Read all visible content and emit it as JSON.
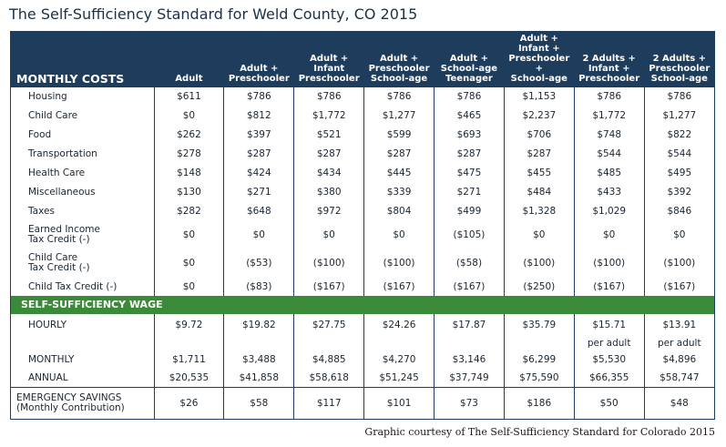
{
  "title": "The Self-Sufficiency Standard for Weld County, CO 2015",
  "credit": "Graphic courtesy of The Self-Sufficiency Standard for Colorado 2015",
  "header": {
    "label": "MONTHLY COSTS",
    "columns": [
      [
        "Adult"
      ],
      [
        "Adult +",
        "Preschooler"
      ],
      [
        "Adult +",
        "Infant",
        "Preschooler"
      ],
      [
        "Adult +",
        "Preschooler",
        "School-age"
      ],
      [
        "Adult +",
        "School-age",
        "Teenager"
      ],
      [
        "Adult +",
        "Infant +",
        "Preschooler +",
        "School-age"
      ],
      [
        "2 Adults +",
        "Infant +",
        "Preschooler"
      ],
      [
        "2 Adults +",
        "Preschooler",
        "School-age"
      ]
    ]
  },
  "costs": [
    {
      "label": [
        "Housing"
      ],
      "values": [
        "$611",
        "$786",
        "$786",
        "$786",
        "$786",
        "$1,153",
        "$786",
        "$786"
      ]
    },
    {
      "label": [
        "Child Care"
      ],
      "values": [
        "$0",
        "$812",
        "$1,772",
        "$1,277",
        "$465",
        "$2,237",
        "$1,772",
        "$1,277"
      ]
    },
    {
      "label": [
        "Food"
      ],
      "values": [
        "$262",
        "$397",
        "$521",
        "$599",
        "$693",
        "$706",
        "$748",
        "$822"
      ]
    },
    {
      "label": [
        "Transportation"
      ],
      "values": [
        "$278",
        "$287",
        "$287",
        "$287",
        "$287",
        "$287",
        "$544",
        "$544"
      ]
    },
    {
      "label": [
        "Health Care"
      ],
      "values": [
        "$148",
        "$424",
        "$434",
        "$445",
        "$475",
        "$455",
        "$485",
        "$495"
      ]
    },
    {
      "label": [
        "Miscellaneous"
      ],
      "values": [
        "$130",
        "$271",
        "$380",
        "$339",
        "$271",
        "$484",
        "$433",
        "$392"
      ]
    },
    {
      "label": [
        "Taxes"
      ],
      "values": [
        "$282",
        "$648",
        "$972",
        "$804",
        "$499",
        "$1,328",
        "$1,029",
        "$846"
      ]
    },
    {
      "label": [
        "Earned Income",
        "Tax Credit (-)"
      ],
      "values": [
        "$0",
        "$0",
        "$0",
        "$0",
        "($105)",
        "$0",
        "$0",
        "$0"
      ]
    },
    {
      "label": [
        "Child Care",
        "Tax Credit (-)"
      ],
      "values": [
        "$0",
        "($53)",
        "($100)",
        "($100)",
        "($58)",
        "($100)",
        "($100)",
        "($100)"
      ]
    },
    {
      "label": [
        "Child Tax Credit (-)"
      ],
      "values": [
        "$0",
        "($83)",
        "($167)",
        "($167)",
        "($167)",
        "($250)",
        "($167)",
        "($167)"
      ]
    }
  ],
  "wage_header": "SELF-SUFFICIENCY WAGE",
  "hourly": {
    "label": "HOURLY",
    "values": [
      "$9.72",
      "$19.82",
      "$27.75",
      "$24.26",
      "$17.87",
      "$35.79",
      "$15.71",
      "$13.91"
    ]
  },
  "per_adult": [
    "",
    "",
    "",
    "",
    "",
    "",
    "per adult",
    "per adult"
  ],
  "monthly": {
    "label": "MONTHLY",
    "values": [
      "$1,711",
      "$3,488",
      "$4,885",
      "$4,270",
      "$3,146",
      "$6,299",
      "$5,530",
      "$4,896"
    ]
  },
  "annual": {
    "label": "ANNUAL",
    "values": [
      "$20,535",
      "$41,858",
      "$58,618",
      "$51,245",
      "$37,749",
      "$75,590",
      "$66,355",
      "$58,747"
    ]
  },
  "emergency": {
    "label": [
      "EMERGENCY SAVINGS",
      "(Monthly Contribution)"
    ],
    "values": [
      "$26",
      "$58",
      "$117",
      "$101",
      "$73",
      "$186",
      "$50",
      "$48"
    ]
  }
}
